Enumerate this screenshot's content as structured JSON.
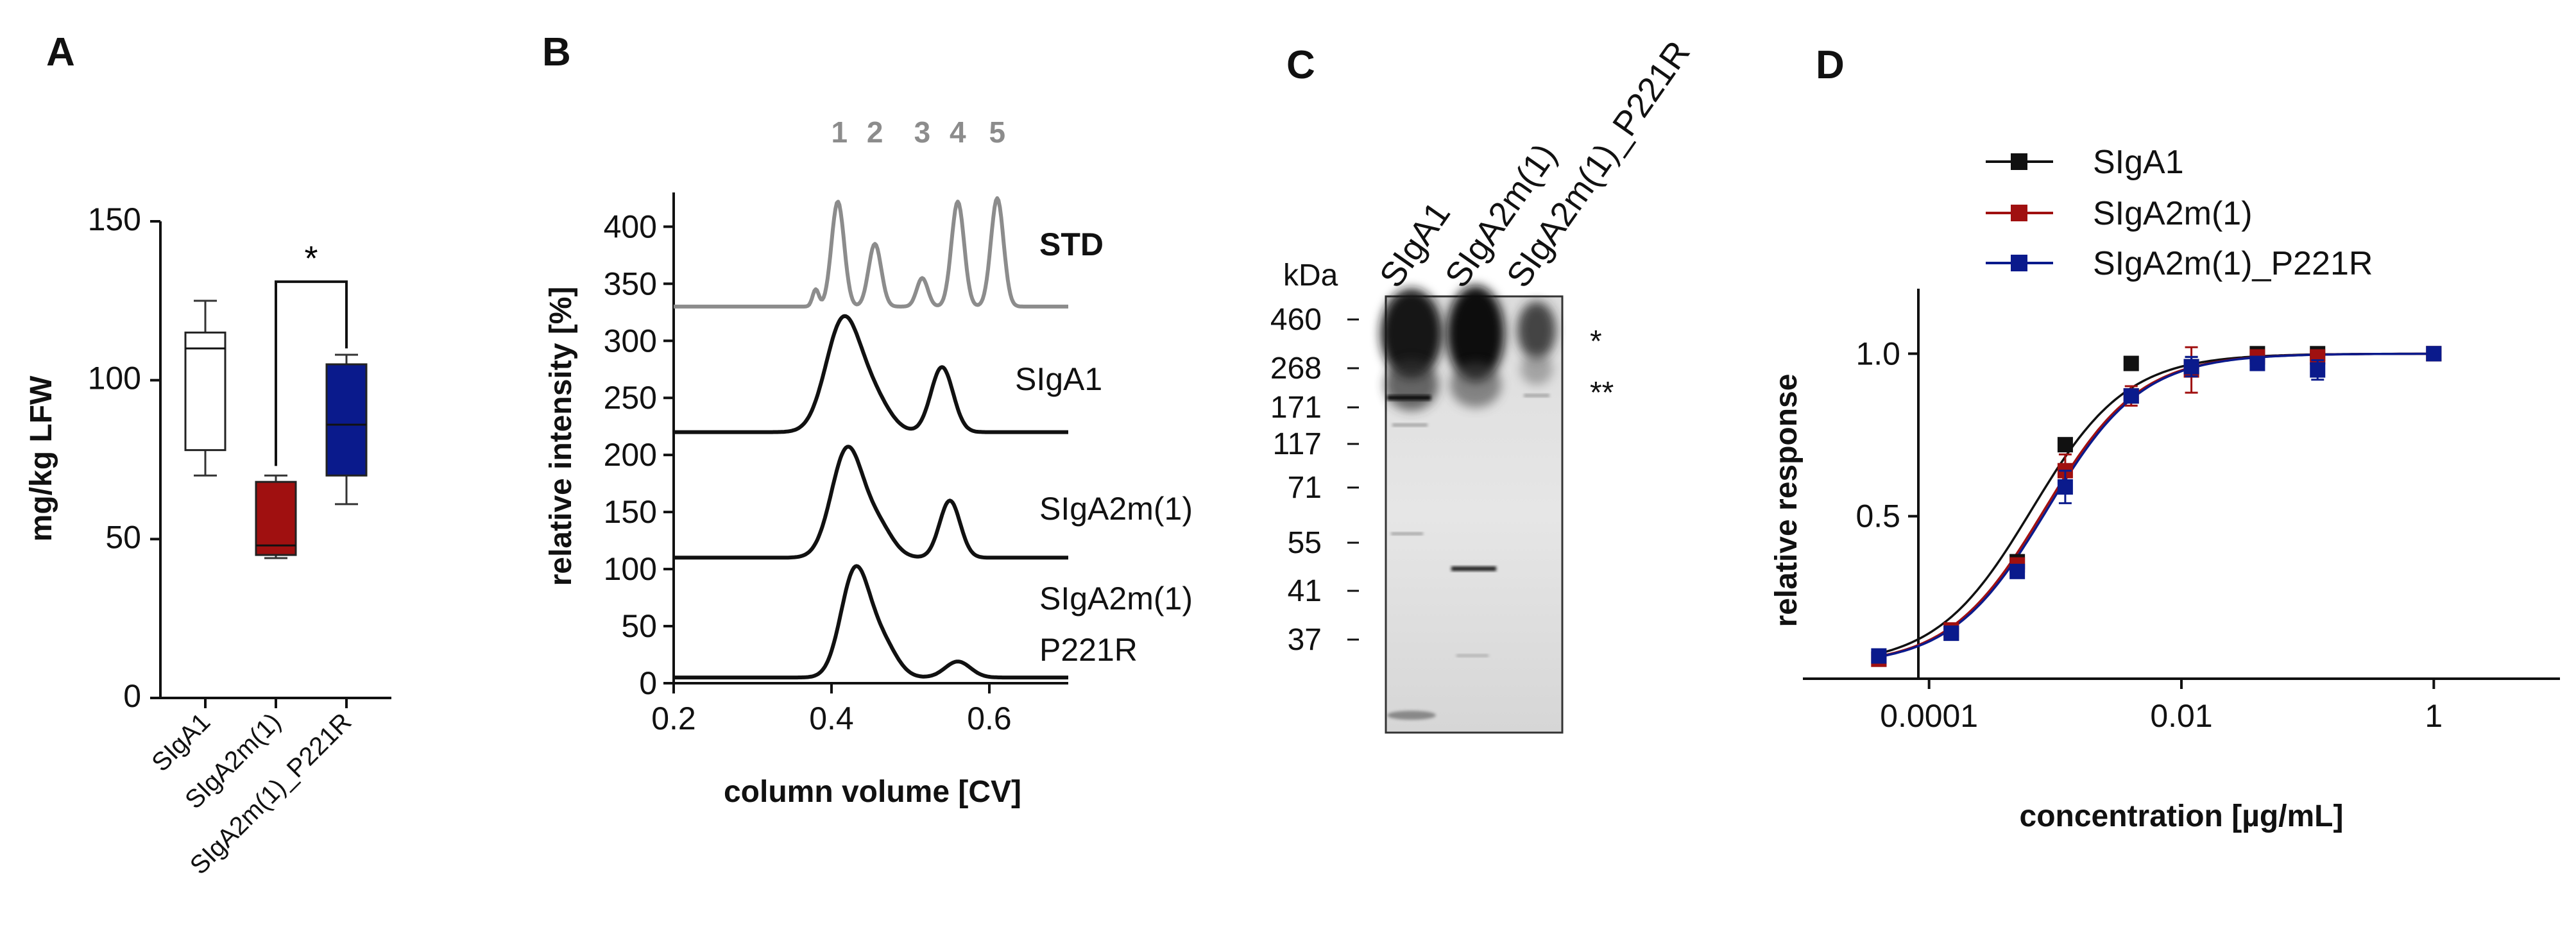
{
  "panels": {
    "a": "A",
    "b": "B",
    "c": "C",
    "d": "D"
  },
  "colors": {
    "black": "#111111",
    "red": "#a01010",
    "blue": "#0a1a8c",
    "gray": "#8c8c8c"
  },
  "chart_data": [
    {
      "type": "box",
      "title": "",
      "xlabel": "",
      "ylabel": "mg/kg LFW",
      "ylim": [
        0,
        150
      ],
      "yticks": [
        0,
        50,
        100,
        150
      ],
      "significance": "*",
      "categories": [
        "SIgA1",
        "SIgA2m(1)",
        "SIgA2m(1)_P221R"
      ],
      "boxes": [
        {
          "name": "SIgA1",
          "color": "#ffffff",
          "min": 70,
          "q1": 78,
          "median": 110,
          "q3": 115,
          "max": 125
        },
        {
          "name": "SIgA2m(1)",
          "color": "#a01010",
          "min": 44,
          "q1": 45,
          "median": 48,
          "q3": 68,
          "max": 70
        },
        {
          "name": "SIgA2m(1)_P221R",
          "color": "#0a1a8c",
          "min": 61,
          "q1": 70,
          "median": 86,
          "q3": 105,
          "max": 108
        }
      ]
    },
    {
      "type": "line",
      "title": "",
      "xlabel": "column volume [CV]",
      "ylabel": "relative intensity [%]",
      "xlim": [
        0.2,
        0.7
      ],
      "ylim": [
        0,
        430
      ],
      "xticks": [
        0.2,
        0.4,
        0.6
      ],
      "yticks": [
        0,
        50,
        100,
        150,
        200,
        250,
        300,
        350,
        400
      ],
      "peak_labels": [
        {
          "label": "1",
          "x": 0.41
        },
        {
          "label": "2",
          "x": 0.455
        },
        {
          "label": "3",
          "x": 0.515
        },
        {
          "label": "4",
          "x": 0.56
        },
        {
          "label": "5",
          "x": 0.61
        }
      ],
      "series": [
        {
          "name": "STD",
          "color": "#8c8c8c",
          "baseline": 330,
          "peaks": [
            {
              "x": 0.38,
              "h": 15,
              "w": 0.004
            },
            {
              "x": 0.408,
              "h": 92,
              "w": 0.008
            },
            {
              "x": 0.455,
              "h": 55,
              "w": 0.008
            },
            {
              "x": 0.515,
              "h": 25,
              "w": 0.007
            },
            {
              "x": 0.56,
              "h": 92,
              "w": 0.008
            },
            {
              "x": 0.61,
              "h": 95,
              "w": 0.008
            }
          ]
        },
        {
          "name": "SIgA1",
          "color": "#111111",
          "baseline": 220,
          "peaks": [
            {
              "x": 0.415,
              "h": 98,
              "w": 0.022
            },
            {
              "x": 0.455,
              "h": 25,
              "w": 0.02
            },
            {
              "x": 0.54,
              "h": 57,
              "w": 0.014
            }
          ]
        },
        {
          "name": "SIgA2m(1)",
          "color": "#111111",
          "baseline": 110,
          "peaks": [
            {
              "x": 0.42,
              "h": 95,
              "w": 0.02
            },
            {
              "x": 0.46,
              "h": 25,
              "w": 0.018
            },
            {
              "x": 0.55,
              "h": 50,
              "w": 0.013
            }
          ]
        },
        {
          "name": "SIgA2m(1) P221R",
          "color": "#111111",
          "baseline": 5,
          "peaks": [
            {
              "x": 0.43,
              "h": 93,
              "w": 0.018
            },
            {
              "x": 0.465,
              "h": 28,
              "w": 0.018
            },
            {
              "x": 0.56,
              "h": 14,
              "w": 0.016
            }
          ]
        }
      ],
      "trace_labels": [
        "STD",
        "SIgA1",
        "SIgA2m(1)",
        "SIgA2m(1)",
        "P221R"
      ]
    },
    {
      "type": "gel",
      "title": "",
      "mw_unit": "kDa",
      "mw_markers": [
        "460",
        "268",
        "171",
        "117",
        "71",
        "55",
        "41",
        "37"
      ],
      "lanes": [
        "SIgA1",
        "SIgA2m(1)",
        "SIgA2m(1)_P221R"
      ],
      "annotations": [
        "*",
        "**"
      ]
    },
    {
      "type": "line",
      "title": "",
      "xlabel": "concentration [µg/mL]",
      "ylabel": "relative response",
      "x_scale": "log",
      "xlim": [
        1e-05,
        10
      ],
      "ylim": [
        0,
        1.2
      ],
      "xticks": [
        "0.0001",
        "0.01",
        "1"
      ],
      "yticks": [
        "0.5",
        "1.0"
      ],
      "legend_position": "top",
      "x": [
        4e-05,
        0.00015,
        0.0005,
        0.0012,
        0.004,
        0.012,
        0.04,
        0.12,
        1.0
      ],
      "series": [
        {
          "name": "SIgA1",
          "color": "#111111",
          "values": [
            0.06,
            0.14,
            0.36,
            0.72,
            0.97,
            0.96,
            1.0,
            1.0,
            1.0
          ],
          "errors": [
            0.01,
            0.01,
            0.02,
            0.02,
            0.02,
            0.03,
            0.02,
            0.01,
            0.01
          ],
          "ec50": 0.00065
        },
        {
          "name": "SIgA2m(1)",
          "color": "#a01010",
          "values": [
            0.06,
            0.15,
            0.35,
            0.64,
            0.87,
            0.95,
            0.99,
            0.99,
            1.0
          ],
          "errors": [
            0.01,
            0.01,
            0.02,
            0.05,
            0.03,
            0.07,
            0.02,
            0.02,
            0.01
          ],
          "ec50": 0.00082
        },
        {
          "name": "SIgA2m(1)_P221R",
          "color": "#0a1a8c",
          "values": [
            0.07,
            0.14,
            0.33,
            0.59,
            0.87,
            0.96,
            0.97,
            0.95,
            1.0
          ],
          "errors": [
            0.01,
            0.01,
            0.02,
            0.05,
            0.02,
            0.03,
            0.02,
            0.03,
            0.01
          ],
          "ec50": 0.00086
        }
      ]
    }
  ]
}
